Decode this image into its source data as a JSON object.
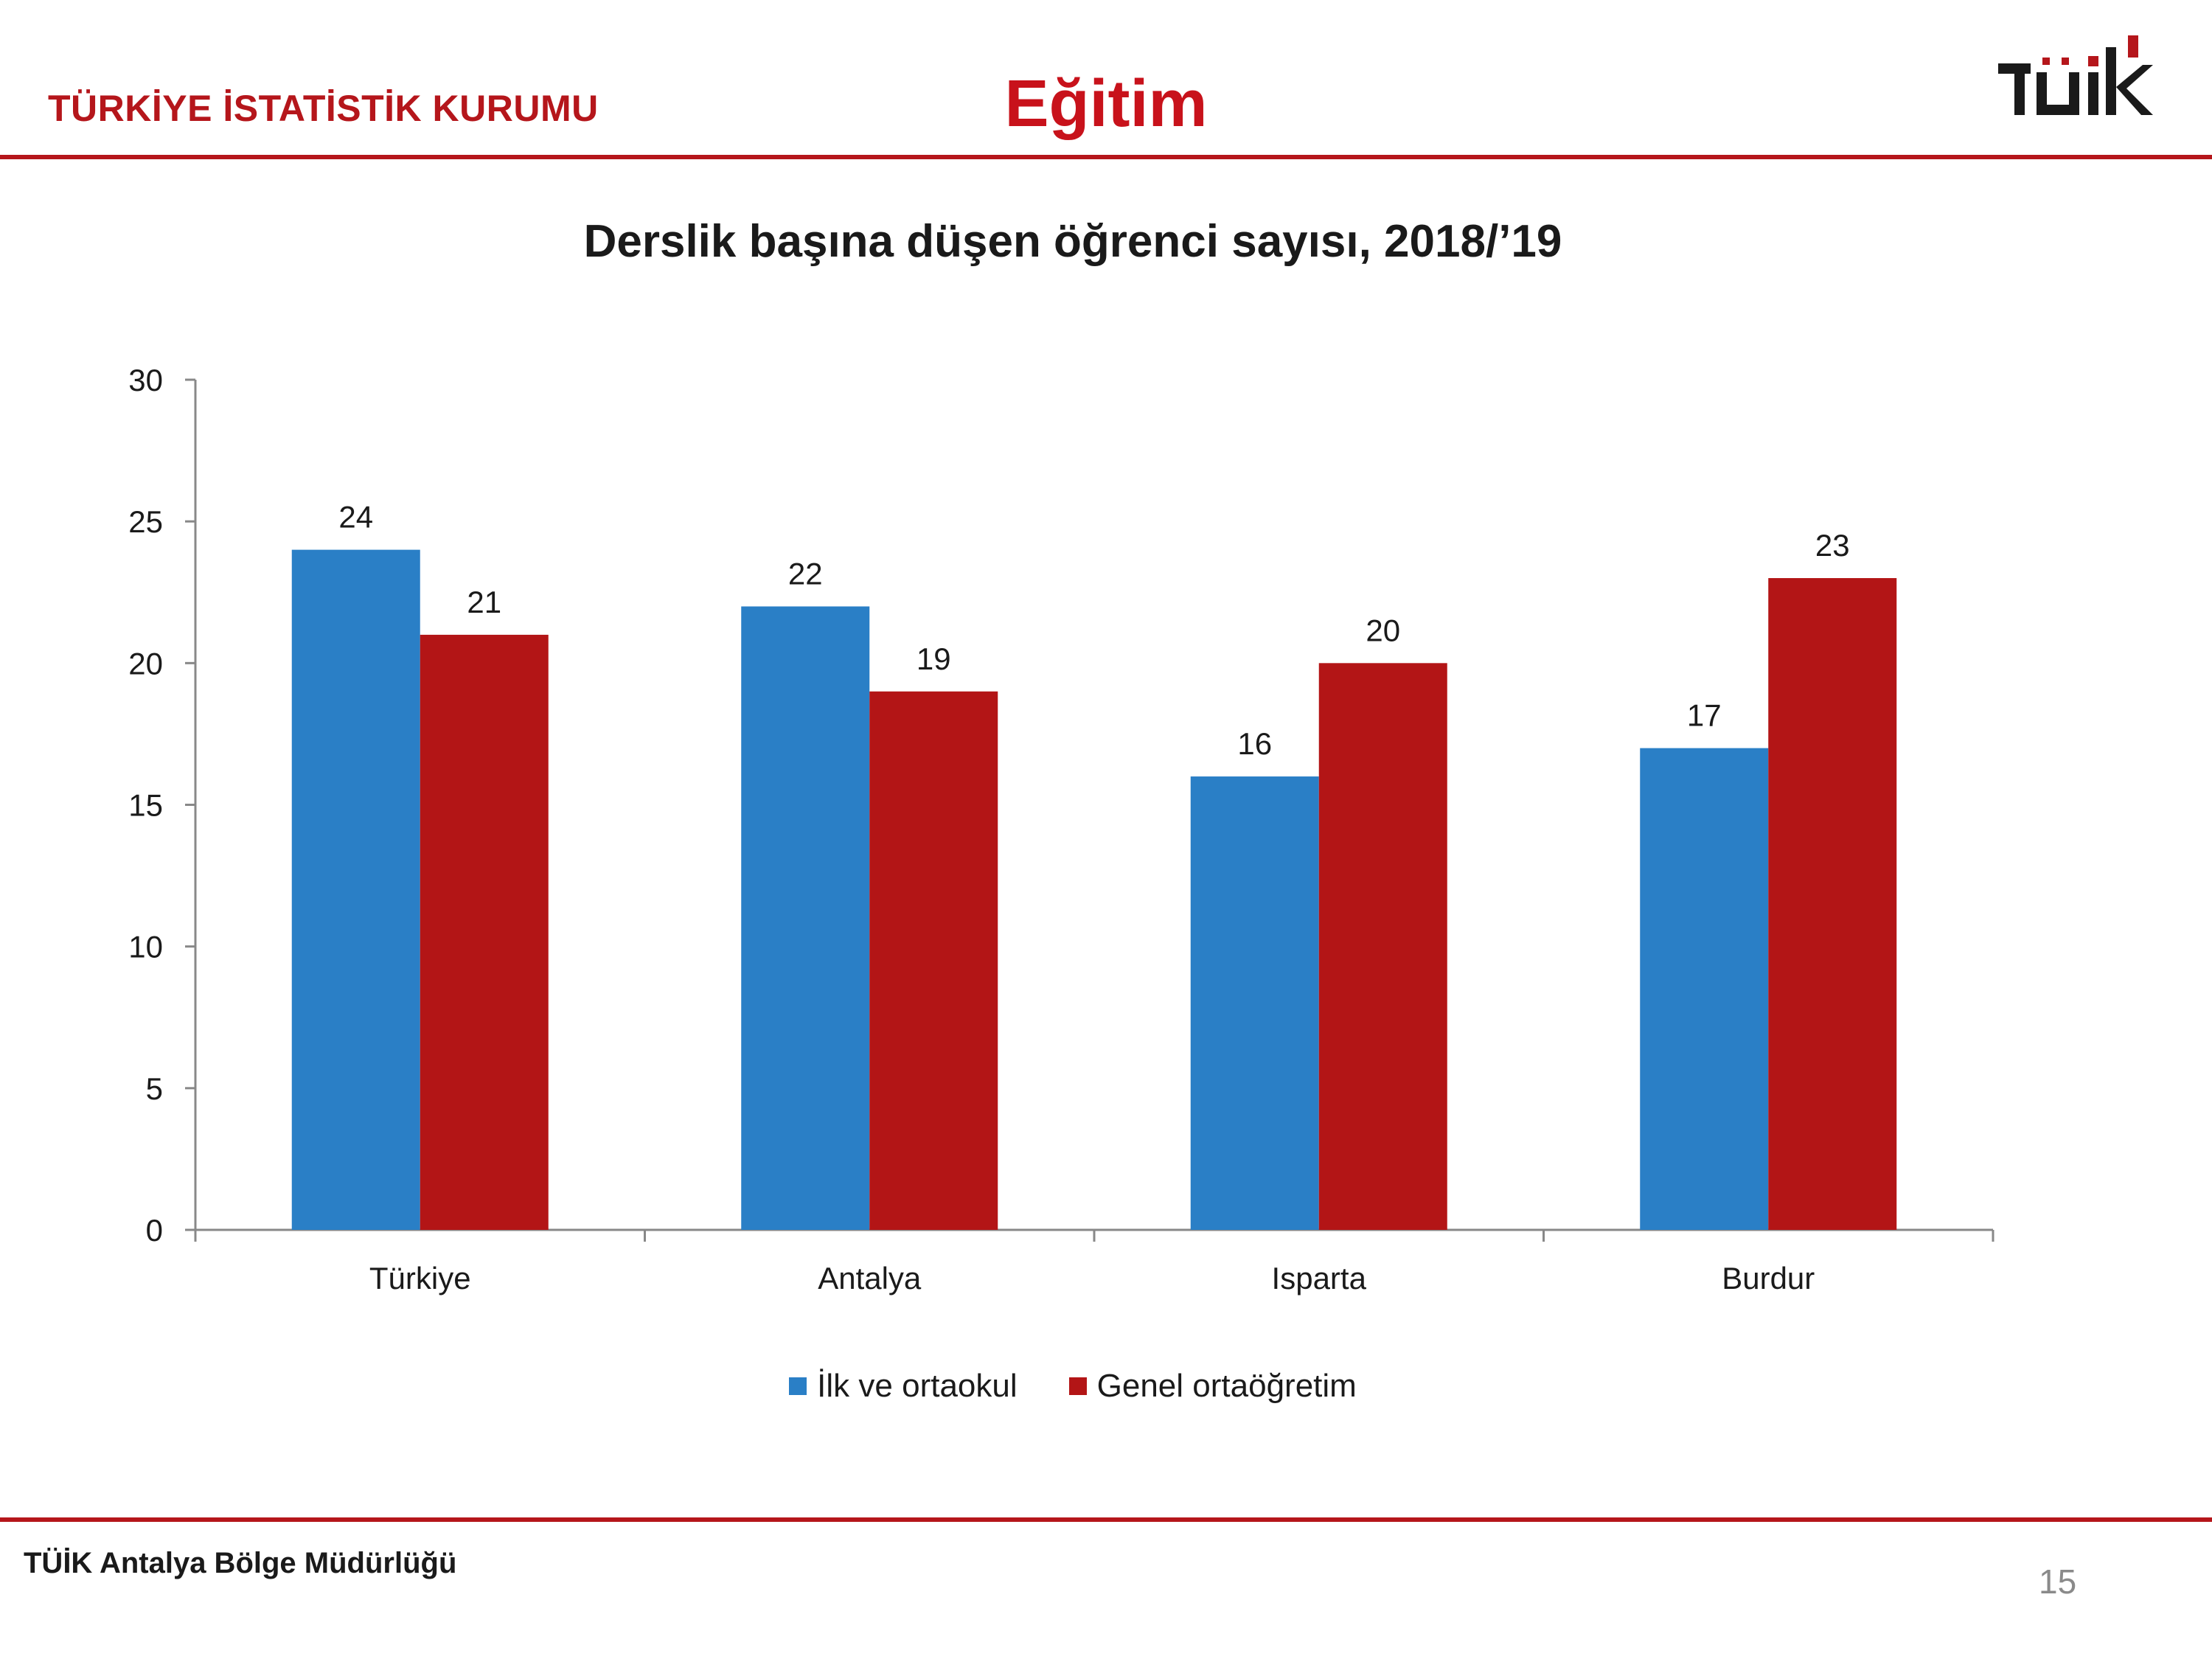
{
  "header": {
    "org_name": "TÜRKİYE İSTATİSTİK KURUMU",
    "section_title": "Eğitim",
    "logo_text": "TÜİK",
    "logo_icon": "tuik-logo-icon"
  },
  "chart_data": {
    "type": "bar",
    "title": "Derslik başına düşen öğrenci sayısı, 2018/’19",
    "categories": [
      "Türkiye",
      "Antalya",
      "Isparta",
      "Burdur"
    ],
    "series": [
      {
        "name": "İlk ve ortaokul",
        "values": [
          24,
          22,
          16,
          17
        ],
        "color": "#2a7fc6"
      },
      {
        "name": "Genel ortaöğretim",
        "values": [
          21,
          19,
          20,
          23
        ],
        "color": "#b31516"
      }
    ],
    "xlabel": "",
    "ylabel": "",
    "ylim": [
      0,
      30
    ],
    "yticks": [
      0,
      5,
      10,
      15,
      20,
      25,
      30
    ],
    "grid": false,
    "legend_position": "bottom"
  },
  "footer": {
    "org": "TÜİK Antalya Bölge Müdürlüğü",
    "page_number": "15"
  }
}
